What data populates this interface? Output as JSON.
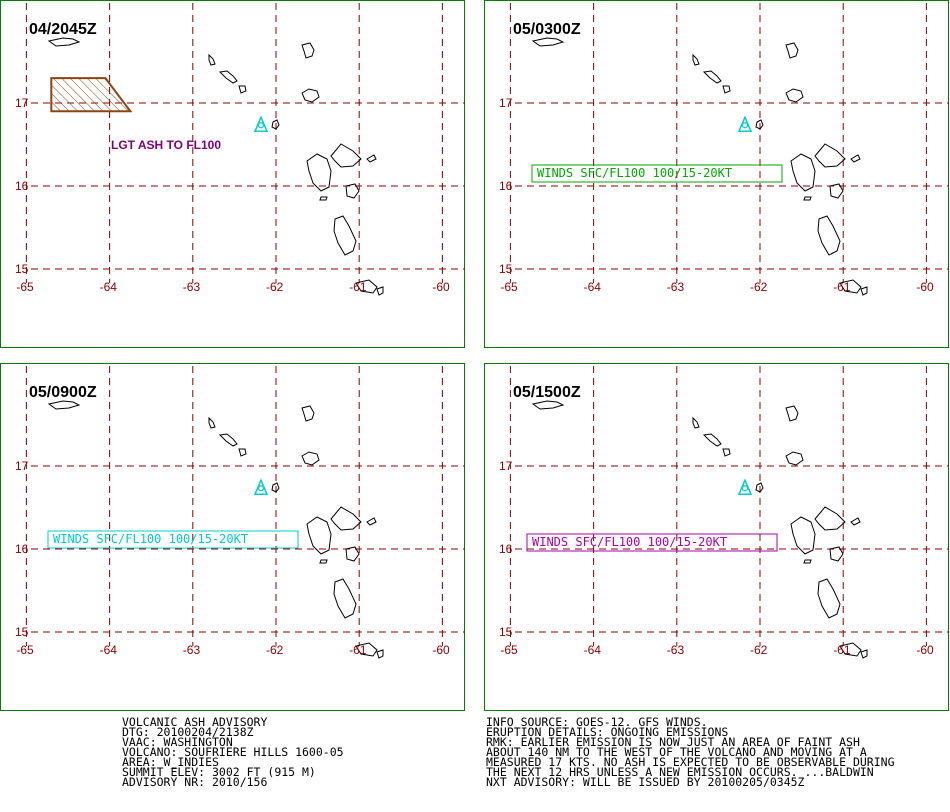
{
  "axes": {
    "lat_labels": [
      "17",
      "16",
      "15"
    ],
    "lon_labels": [
      "-65",
      "-64",
      "-63",
      "-62",
      "-61",
      "-60"
    ]
  },
  "colors": {
    "panel_border": "#008000",
    "grid": "#8b0000",
    "coast": "#000000",
    "ash": "#8b4513",
    "volcano_marker": "#00cccc"
  },
  "panels": [
    {
      "time": "04/2045Z",
      "ash_polygon": [
        [
          -64.7,
          17.3
        ],
        [
          -64.05,
          17.3
        ],
        [
          -63.75,
          16.9
        ],
        [
          -64.7,
          16.9
        ]
      ],
      "annotation": {
        "text": "LGT ASH TO FL100",
        "color": "#800080",
        "boxed": false
      }
    },
    {
      "time": "05/0300Z",
      "annotation": {
        "text": "WINDS SFC/FL100 100/15-20KT",
        "color": "#00aa00",
        "boxed": true
      }
    },
    {
      "time": "05/0900Z",
      "annotation": {
        "text": "WINDS SFC/FL100 100/15-20KT",
        "color": "#00cccc",
        "boxed": true
      }
    },
    {
      "time": "05/1500Z",
      "annotation": {
        "text": "WINDS SFC/FL100 100/15-20KT",
        "color": "#aa00aa",
        "boxed": true
      }
    }
  ],
  "advisory_left": [
    "VOLCANIC ASH ADVISORY",
    "DTG: 20100204/2138Z",
    "VAAC: WASHINGTON",
    "VOLCANO: SOUFRIERE HILLS 1600-05",
    "AREA: W_INDIES",
    "SUMMIT ELEV: 3002 FT (915 M)",
    "ADVISORY NR: 2010/156"
  ],
  "advisory_right": [
    "INFO SOURCE: GOES-12. GFS WINDS.",
    "ERUPTION DETAILS: ONGOING EMISSIONS",
    "RMK: EARLIER EMISSION IS NOW JUST AN AREA OF FAINT ASH",
    "ABOUT 140 NM TO THE WEST OF THE VOLCANO AND MOVING AT A",
    "MEASURED 17 KTS. NO ASH IS EXPECTED TO BE OBSERVABLE DURING",
    "THE NEXT 12 HRS UNLESS A NEW EMISSION OCCURS. ...BALDWIN",
    "NXT ADVISORY: WILL BE ISSUED BY 20100205/0345Z"
  ]
}
